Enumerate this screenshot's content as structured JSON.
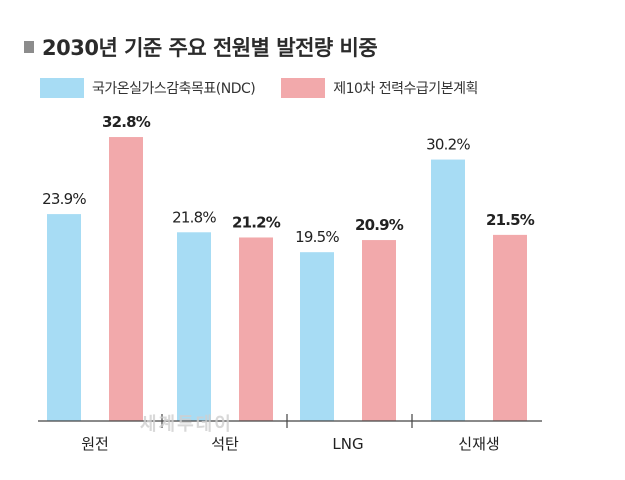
{
  "chart_data": {
    "type": "bar",
    "title": "2030년 기준 주요 전원별 발전량 비중",
    "categories": [
      "원전",
      "석탄",
      "LNG",
      "신재생"
    ],
    "series": [
      {
        "name": "국가온실가스감축목표(NDC)",
        "values": [
          23.9,
          21.8,
          19.5,
          30.2
        ],
        "labels": [
          "23.9%",
          "21.8%",
          "19.5%",
          "30.2%"
        ],
        "color": "#a7dcf4"
      },
      {
        "name": "제10차 전력수급기본계획",
        "values": [
          32.8,
          21.2,
          20.9,
          21.5
        ],
        "labels": [
          "32.8%",
          "21.2%",
          "20.9%",
          "21.5%"
        ],
        "color": "#f2a9ab"
      }
    ],
    "ylim": [
      0,
      35
    ],
    "xlabel": "",
    "ylabel": "",
    "legend_position": "top-left",
    "grid": false
  },
  "watermark": "세계투데이"
}
